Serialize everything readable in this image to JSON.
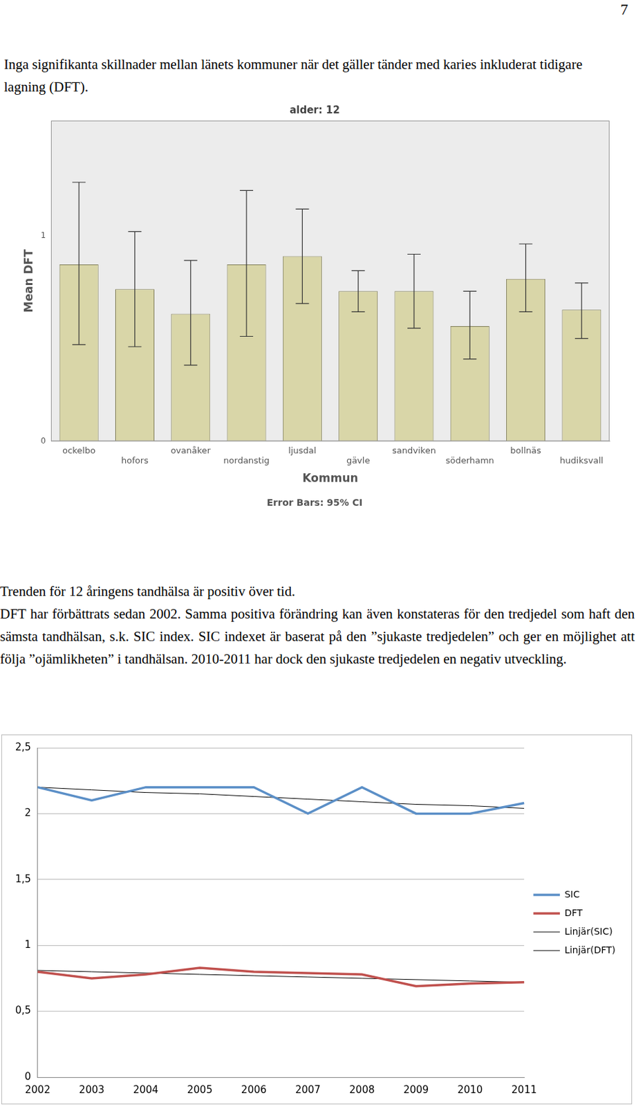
{
  "page_number": "7",
  "paragraphs": [
    [
      "Inga signifikanta skillnader mellan länets kommuner när det gäller tänder med karies inkluderat tidigare lagning (DFT)."
    ],
    [
      "Trenden för 12 åringens tandhälsa är positiv över tid.",
      "DFT har förbättrats sedan 2002. Samma positiva förändring kan även konstateras för den tredjedel som haft den sämsta tandhälsan, s.k. SIC index.  SIC indexet är baserat på den ”sjukaste tredjedelen” och ger en möjlighet att följa ”ojämlikheten” i tandhälsan. 2010-2011 har dock den sjukaste tredjedelen en negativ utveckling."
    ]
  ],
  "chart_data": [
    {
      "type": "bar",
      "title": "alder: 12",
      "y_label": "Mean DFT",
      "x_label": "Kommun",
      "note": "Error Bars: 95% CI",
      "categories": [
        "ockelbo",
        "hofors",
        "ovanåker",
        "nordanstig",
        "ljusdal",
        "gävle",
        "sandviken",
        "söderhamn",
        "bollnäs",
        "hudiksvall"
      ],
      "values": [
        0.86,
        0.74,
        0.62,
        0.86,
        0.9,
        0.73,
        0.73,
        0.56,
        0.79,
        0.64
      ],
      "error_low": [
        0.47,
        0.46,
        0.37,
        0.51,
        0.67,
        0.63,
        0.55,
        0.4,
        0.63,
        0.5
      ],
      "error_high": [
        1.26,
        1.02,
        0.88,
        1.22,
        1.13,
        0.83,
        0.91,
        0.73,
        0.96,
        0.77
      ],
      "color": "#d9d6a8",
      "ylim": [
        0,
        1.56
      ],
      "yticks": [
        0,
        1
      ],
      "grid": false,
      "legend": "none"
    },
    {
      "type": "line",
      "categories": [
        "2002",
        "2003",
        "2004",
        "2005",
        "2006",
        "2007",
        "2008",
        "2009",
        "2010",
        "2011"
      ],
      "series": [
        {
          "name": "SIC",
          "color": "#5b8fc7",
          "values": [
            2.2,
            2.1,
            2.2,
            2.2,
            2.2,
            2.0,
            2.2,
            2.0,
            2.0,
            2.08
          ]
        },
        {
          "name": "DFT",
          "color": "#c0504d",
          "values": [
            0.8,
            0.75,
            0.78,
            0.83,
            0.8,
            0.79,
            0.78,
            0.69,
            0.71,
            0.72
          ]
        },
        {
          "name": "Linjär(SIC)",
          "color": "#000000",
          "values": [
            2.2,
            2.18,
            2.16,
            2.15,
            2.13,
            2.11,
            2.09,
            2.07,
            2.06,
            2.04
          ]
        },
        {
          "name": "Linjär(DFT)",
          "color": "#000000",
          "values": [
            0.81,
            0.8,
            0.79,
            0.78,
            0.77,
            0.76,
            0.75,
            0.74,
            0.73,
            0.72
          ]
        }
      ],
      "ylim": [
        0,
        2.5
      ],
      "yticks": [
        0,
        {
          "value": 0.5,
          "label": "0,5"
        },
        1,
        {
          "value": 1.5,
          "label": "1,5"
        },
        2,
        {
          "value": 2.5,
          "label": "2,5"
        }
      ],
      "grid": true,
      "legend": "right"
    }
  ]
}
